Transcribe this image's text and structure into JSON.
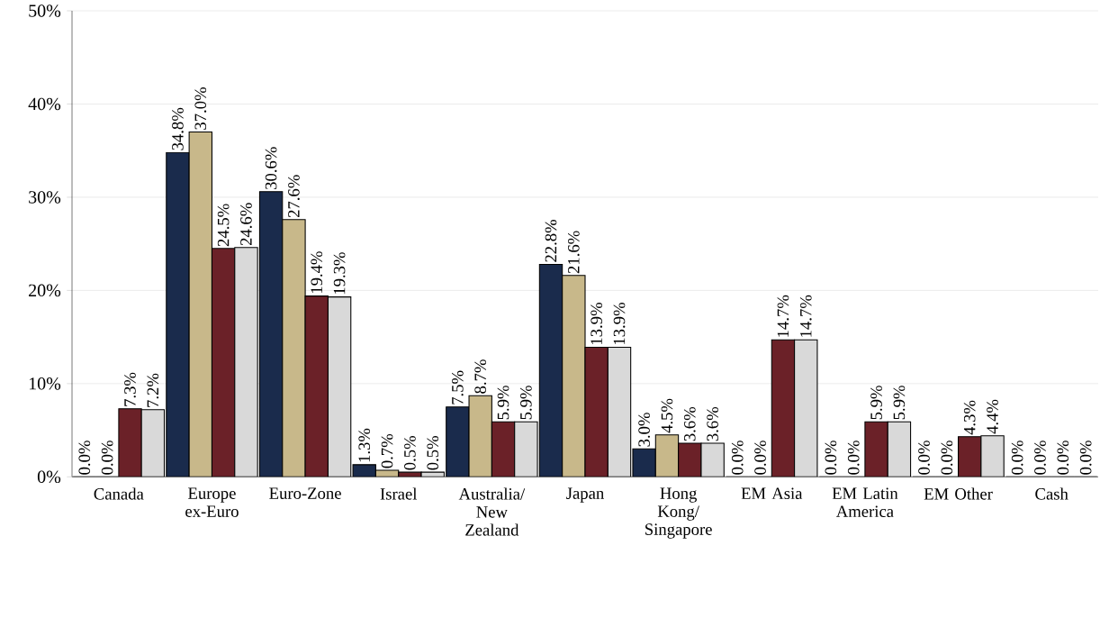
{
  "chart_data": {
    "type": "bar",
    "categories": [
      "Canada",
      "Europe ex-Euro",
      "Euro-Zone",
      "Israel",
      "Australia/ New Zealand",
      "Japan",
      "Hong Kong/ Singapore",
      "EM Asia",
      "EM Latin America",
      "EM Other",
      "Cash"
    ],
    "series": [
      {
        "color": "#1a2b4c",
        "values": [
          0.0,
          34.8,
          30.6,
          1.3,
          7.5,
          22.8,
          3.0,
          0.0,
          0.0,
          0.0,
          0.0
        ],
        "value_labels": [
          "0.0%",
          "34.8%",
          "30.6%",
          "1.3%",
          "7.5%",
          "22.8%",
          "3.0%",
          "0.0%",
          "0.0%",
          "0.0%",
          "0.0%"
        ]
      },
      {
        "color": "#c8b88a",
        "values": [
          0.0,
          37.0,
          27.6,
          0.7,
          8.7,
          21.6,
          4.5,
          0.0,
          0.0,
          0.0,
          0.0
        ],
        "value_labels": [
          "0.0%",
          "37.0%",
          "27.6%",
          "0.7%",
          "8.7%",
          "21.6%",
          "4.5%",
          "0.0%",
          "0.0%",
          "0.0%",
          "0.0%"
        ]
      },
      {
        "color": "#6b2128",
        "values": [
          7.3,
          24.5,
          19.4,
          0.5,
          5.9,
          13.9,
          3.6,
          14.7,
          5.9,
          4.3,
          0.0
        ],
        "value_labels": [
          "7.3%",
          "24.5%",
          "19.4%",
          "0.5%",
          "5.9%",
          "13.9%",
          "3.6%",
          "14.7%",
          "5.9%",
          "4.3%",
          "0.0%"
        ]
      },
      {
        "color": "#d9d9d9",
        "values": [
          7.2,
          24.6,
          19.3,
          0.5,
          5.9,
          13.9,
          3.6,
          14.7,
          5.9,
          4.4,
          0.0
        ],
        "value_labels": [
          "7.2%",
          "24.6%",
          "19.3%",
          "0.5%",
          "5.9%",
          "13.9%",
          "3.6%",
          "14.7%",
          "5.9%",
          "4.4%",
          "0.0%"
        ]
      }
    ],
    "ylim": [
      0,
      50
    ],
    "yticks": [
      {
        "value": 0,
        "label": "0%"
      },
      {
        "value": 10,
        "label": "10%"
      },
      {
        "value": 20,
        "label": "20%"
      },
      {
        "value": 30,
        "label": "30%"
      },
      {
        "value": 40,
        "label": "40%"
      },
      {
        "value": 50,
        "label": "50%"
      }
    ],
    "grid": "y"
  }
}
